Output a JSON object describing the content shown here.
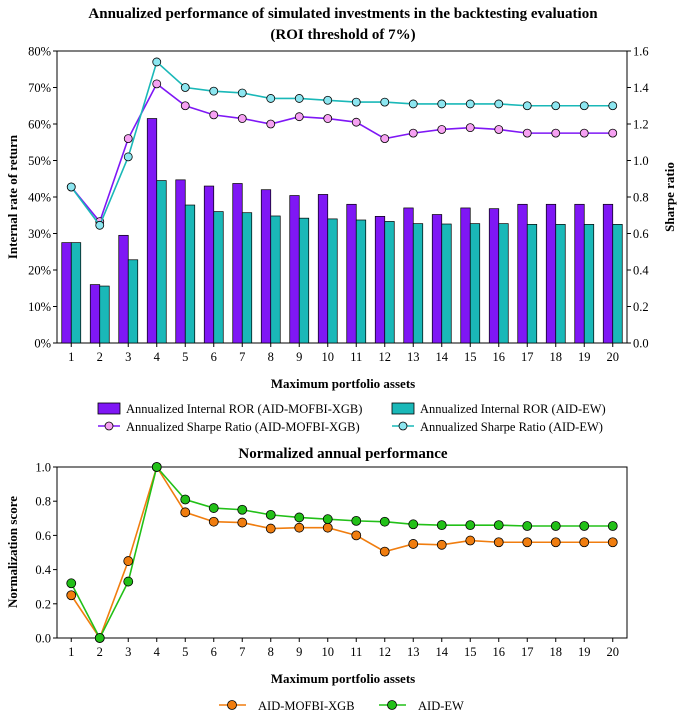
{
  "chart_data": [
    {
      "type": "bar",
      "title": "Annualized performance of simulated investments in the backtesting evaluation",
      "subtitle": "(ROI threshold of 7%)",
      "xlabel": "Maximum portfolio assets",
      "ylabel": "Internal rate of return",
      "y2label": "Sharpe ratio",
      "categories": [
        "1",
        "2",
        "3",
        "4",
        "5",
        "6",
        "7",
        "8",
        "9",
        "10",
        "11",
        "12",
        "13",
        "14",
        "15",
        "16",
        "17",
        "18",
        "19",
        "20"
      ],
      "ylim": [
        0,
        0.8
      ],
      "y2lim": [
        0,
        1.6
      ],
      "yticks": [
        "0%",
        "10%",
        "20%",
        "30%",
        "40%",
        "50%",
        "60%",
        "70%",
        "80%"
      ],
      "y2ticks": [
        "0.0",
        "0.2",
        "0.4",
        "0.6",
        "0.8",
        "1.0",
        "1.2",
        "1.4",
        "1.6"
      ],
      "bar_series": [
        {
          "name": "Annualized Internal ROR (AID-MOFBI-XGB)",
          "color": "#7f17f5",
          "values": [
            0.275,
            0.16,
            0.295,
            0.615,
            0.447,
            0.43,
            0.437,
            0.42,
            0.404,
            0.407,
            0.38,
            0.347,
            0.37,
            0.352,
            0.37,
            0.368,
            0.38,
            0.38,
            0.38,
            0.38
          ]
        },
        {
          "name": "Annualized Internal ROR (AID-EW)",
          "color": "#1ab8b8",
          "values": [
            0.275,
            0.156,
            0.228,
            0.445,
            0.378,
            0.36,
            0.357,
            0.348,
            0.342,
            0.34,
            0.337,
            0.333,
            0.327,
            0.326,
            0.327,
            0.327,
            0.325,
            0.325,
            0.325,
            0.325
          ]
        }
      ],
      "line_series": [
        {
          "name": "Annualized Sharpe Ratio (AID-MOFBI-XGB)",
          "color": "#7f17f5",
          "axis": "y2",
          "values": [
            0.855,
            0.665,
            1.12,
            1.42,
            1.3,
            1.25,
            1.23,
            1.2,
            1.24,
            1.23,
            1.21,
            1.12,
            1.15,
            1.17,
            1.18,
            1.17,
            1.15,
            1.15,
            1.15,
            1.15
          ]
        },
        {
          "name": "Annualized Sharpe Ratio (AID-EW)",
          "color": "#1ab8b8",
          "axis": "y2",
          "values": [
            0.855,
            0.645,
            1.02,
            1.54,
            1.4,
            1.38,
            1.37,
            1.34,
            1.34,
            1.33,
            1.32,
            1.32,
            1.31,
            1.31,
            1.31,
            1.31,
            1.3,
            1.3,
            1.3,
            1.3
          ]
        }
      ],
      "legend": "bottom",
      "grid": false
    },
    {
      "type": "line",
      "title": "Normalized annual performance",
      "xlabel": "Maximum portfolio assets",
      "ylabel": "Normalization score",
      "categories": [
        "1",
        "2",
        "3",
        "4",
        "5",
        "6",
        "7",
        "8",
        "9",
        "10",
        "11",
        "12",
        "13",
        "14",
        "15",
        "16",
        "17",
        "18",
        "19",
        "20"
      ],
      "ylim": [
        0,
        1.0
      ],
      "yticks": [
        "0.0",
        "0.2",
        "0.4",
        "0.6",
        "0.8",
        "1.0"
      ],
      "series": [
        {
          "name": "AID-MOFBI-XGB",
          "color": "#f07d0f",
          "values": [
            0.25,
            0.0,
            0.45,
            1.0,
            0.735,
            0.68,
            0.675,
            0.64,
            0.645,
            0.645,
            0.6,
            0.505,
            0.55,
            0.545,
            0.57,
            0.56,
            0.56,
            0.56,
            0.56,
            0.56
          ]
        },
        {
          "name": "AID-EW",
          "color": "#22c018",
          "values": [
            0.32,
            0.0,
            0.33,
            1.0,
            0.81,
            0.76,
            0.75,
            0.72,
            0.705,
            0.695,
            0.685,
            0.68,
            0.665,
            0.66,
            0.66,
            0.66,
            0.655,
            0.655,
            0.655,
            0.655
          ]
        }
      ],
      "legend": "bottom",
      "grid": false
    }
  ]
}
